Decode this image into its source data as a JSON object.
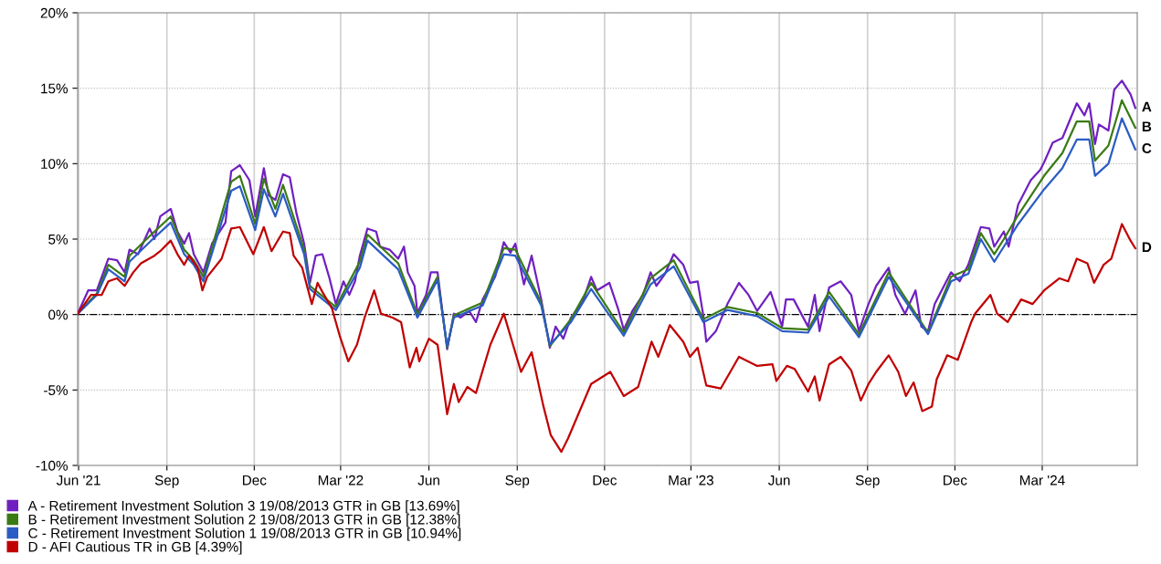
{
  "chart_data": {
    "type": "line",
    "xlim": [
      "2021-05-31",
      "2024-06-08"
    ],
    "xticks": [
      {
        "value": "2021-06-01",
        "label": "Jun '21"
      },
      {
        "value": "2021-09-01",
        "label": "Sep"
      },
      {
        "value": "2021-12-01",
        "label": "Dec"
      },
      {
        "value": "2022-03-01",
        "label": "Mar '22"
      },
      {
        "value": "2022-06-01",
        "label": "Jun"
      },
      {
        "value": "2022-09-01",
        "label": "Sep"
      },
      {
        "value": "2022-12-01",
        "label": "Dec"
      },
      {
        "value": "2023-03-01",
        "label": "Mar '23"
      },
      {
        "value": "2023-06-01",
        "label": "Jun"
      },
      {
        "value": "2023-09-01",
        "label": "Sep"
      },
      {
        "value": "2023-12-01",
        "label": "Dec"
      },
      {
        "value": "2024-03-01",
        "label": "Mar '24"
      }
    ],
    "ylim": [
      -10,
      20
    ],
    "yticks": [
      {
        "value": -10,
        "label": "-10%"
      },
      {
        "value": -5,
        "label": "-5%"
      },
      {
        "value": 0,
        "label": "0%"
      },
      {
        "value": 5,
        "label": "5%"
      },
      {
        "value": 10,
        "label": "10%"
      },
      {
        "value": 15,
        "label": "15%"
      },
      {
        "value": 20,
        "label": "20%"
      }
    ],
    "grid": true,
    "legend": "bottom left",
    "marker": "none",
    "line_style": "solid",
    "ref_lines": [
      {
        "axis": "y",
        "value": 0,
        "label": null,
        "color": "#000000",
        "line_style": "dashdot"
      }
    ],
    "annotations": [
      {
        "text": "A",
        "x": "2024-06-06",
        "y": 13.69
      },
      {
        "text": "B",
        "x": "2024-06-06",
        "y": 12.38
      },
      {
        "text": "C",
        "x": "2024-06-06",
        "y": 10.94
      },
      {
        "text": "D",
        "x": "2024-06-06",
        "y": 4.39
      }
    ],
    "series": [
      {
        "name": "A - Retirement Investment Solution 3 19/08/2013 GTR in GB [13.69%]",
        "color": "#7020c0",
        "x": [
          "2021-05-31",
          "2021-06-11",
          "2021-06-20",
          "2021-07-02",
          "2021-07-11",
          "2021-07-19",
          "2021-07-24",
          "2021-08-02",
          "2021-08-14",
          "2021-08-19",
          "2021-08-25",
          "2021-09-05",
          "2021-09-12",
          "2021-09-19",
          "2021-09-24",
          "2021-09-29",
          "2021-10-09",
          "2021-10-18",
          "2021-11-01",
          "2021-11-07",
          "2021-11-16",
          "2021-11-26",
          "2021-12-02",
          "2021-12-11",
          "2021-12-16",
          "2021-12-23",
          "2021-12-31",
          "2022-01-07",
          "2022-01-14",
          "2022-01-22",
          "2022-01-28",
          "2022-02-03",
          "2022-02-10",
          "2022-02-17",
          "2022-02-24",
          "2022-03-04",
          "2022-03-10",
          "2022-03-16",
          "2022-03-21",
          "2022-03-29",
          "2022-04-07",
          "2022-04-11",
          "2022-04-21",
          "2022-04-30",
          "2022-05-06",
          "2022-05-10",
          "2022-05-17",
          "2022-05-20",
          "2022-05-29",
          "2022-06-03",
          "2022-06-10",
          "2022-06-20",
          "2022-06-27",
          "2022-07-04",
          "2022-07-13",
          "2022-07-20",
          "2022-07-27",
          "2022-08-09",
          "2022-08-18",
          "2022-08-25",
          "2022-08-30",
          "2022-09-08",
          "2022-09-16",
          "2022-09-26",
          "2022-10-05",
          "2022-10-11",
          "2022-10-19",
          "2022-10-27",
          "2022-11-08",
          "2022-11-17",
          "2022-11-23",
          "2022-12-06",
          "2022-12-15",
          "2022-12-21",
          "2022-12-30",
          "2023-01-10",
          "2023-01-18",
          "2023-01-24",
          "2023-02-02",
          "2023-02-11",
          "2023-02-21",
          "2023-02-28",
          "2023-03-08",
          "2023-03-14",
          "2023-03-17",
          "2023-03-27",
          "2023-04-08",
          "2023-04-20",
          "2023-04-30",
          "2023-05-09",
          "2023-05-23",
          "2023-06-04",
          "2023-06-08",
          "2023-06-16",
          "2023-07-01",
          "2023-07-08",
          "2023-07-13",
          "2023-07-23",
          "2023-08-04",
          "2023-08-15",
          "2023-08-23",
          "2023-09-02",
          "2023-09-10",
          "2023-09-23",
          "2023-09-30",
          "2023-10-10",
          "2023-10-21",
          "2023-10-27",
          "2023-11-03",
          "2023-11-10",
          "2023-11-27",
          "2023-12-06",
          "2023-12-15",
          "2023-12-28",
          "2024-01-06",
          "2024-01-11",
          "2024-01-21",
          "2024-01-26",
          "2024-02-05",
          "2024-02-18",
          "2024-02-28",
          "2024-03-03",
          "2024-03-12",
          "2024-03-22",
          "2024-04-06",
          "2024-04-14",
          "2024-04-19",
          "2024-04-25",
          "2024-04-29",
          "2024-05-09",
          "2024-05-15",
          "2024-05-23",
          "2024-06-01",
          "2024-06-06"
        ],
        "values": [
          0.06,
          1.6,
          1.6,
          3.7,
          3.6,
          2.8,
          4.3,
          4.0,
          5.7,
          5.0,
          6.5,
          7.0,
          5.5,
          4.7,
          5.4,
          4.0,
          2.8,
          4.7,
          6.1,
          9.5,
          9.9,
          8.9,
          6.5,
          9.7,
          7.9,
          7.6,
          9.3,
          9.1,
          6.7,
          4.7,
          2.1,
          3.9,
          4.0,
          2.5,
          0.7,
          2.2,
          1.3,
          2.2,
          3.9,
          5.7,
          5.5,
          4.5,
          4.3,
          3.7,
          4.5,
          2.8,
          1.9,
          0.1,
          1.3,
          2.8,
          2.8,
          -2.3,
          0.06,
          -0.2,
          0.24,
          -0.5,
          1.0,
          2.5,
          4.8,
          4.1,
          4.7,
          2.0,
          3.9,
          1.0,
          -2.2,
          -0.8,
          -1.6,
          -0.2,
          0.8,
          2.5,
          1.6,
          2.1,
          0.4,
          -1.0,
          0.24,
          1.3,
          2.8,
          1.9,
          2.7,
          4.0,
          3.3,
          2.1,
          2.2,
          -0.1,
          -1.8,
          -1.1,
          0.7,
          2.1,
          1.3,
          0.24,
          1.5,
          -0.8,
          1.0,
          1.0,
          -0.8,
          1.3,
          -1.1,
          1.8,
          2.2,
          1.3,
          -1.1,
          0.7,
          1.9,
          3.1,
          1.3,
          0.06,
          1.6,
          -0.8,
          -1.1,
          0.7,
          2.8,
          2.2,
          3.3,
          5.8,
          5.7,
          4.5,
          5.5,
          4.5,
          7.3,
          8.9,
          9.6,
          10.1,
          11.4,
          11.7,
          14.0,
          13.2,
          14.0,
          11.3,
          12.6,
          12.2,
          14.9,
          15.5,
          14.6,
          13.69
        ]
      },
      {
        "name": "B - Retirement Investment Solution 2 19/08/2013 GTR in GB [12.38%]",
        "color": "#3a7a14",
        "x": [
          "2021-05-31",
          "2021-06-20",
          "2021-07-02",
          "2021-07-19",
          "2021-07-24",
          "2021-08-14",
          "2021-09-05",
          "2021-09-19",
          "2021-09-29",
          "2021-10-09",
          "2021-11-07",
          "2021-11-16",
          "2021-12-02",
          "2021-12-11",
          "2021-12-23",
          "2021-12-31",
          "2022-01-22",
          "2022-01-28",
          "2022-02-24",
          "2022-03-21",
          "2022-03-29",
          "2022-04-30",
          "2022-05-20",
          "2022-06-10",
          "2022-06-20",
          "2022-06-27",
          "2022-07-27",
          "2022-08-18",
          "2022-08-30",
          "2022-09-26",
          "2022-10-05",
          "2022-10-27",
          "2022-11-17",
          "2022-12-21",
          "2023-01-18",
          "2023-02-11",
          "2023-03-14",
          "2023-04-08",
          "2023-05-09",
          "2023-06-04",
          "2023-07-01",
          "2023-07-23",
          "2023-08-23",
          "2023-09-23",
          "2023-11-03",
          "2023-11-27",
          "2023-12-15",
          "2023-12-28",
          "2024-01-11",
          "2024-01-21",
          "2024-02-05",
          "2024-03-03",
          "2024-03-22",
          "2024-04-06",
          "2024-04-19",
          "2024-04-25",
          "2024-05-09",
          "2024-05-23",
          "2024-06-06"
        ],
        "values": [
          0.05,
          1.4,
          3.3,
          2.5,
          3.9,
          5.2,
          6.5,
          4.3,
          3.6,
          2.5,
          8.8,
          9.2,
          6.0,
          9.0,
          7.0,
          8.6,
          4.3,
          1.9,
          0.5,
          3.5,
          5.3,
          3.4,
          0.0,
          2.5,
          -2.2,
          -0.05,
          0.8,
          4.4,
          4.3,
          0.8,
          -2.1,
          -0.3,
          2.1,
          -1.2,
          2.4,
          3.6,
          -0.3,
          0.5,
          0.1,
          -0.9,
          -1.0,
          1.5,
          -1.3,
          2.8,
          -1.2,
          2.5,
          3.0,
          5.4,
          4.0,
          5.0,
          6.6,
          9.2,
          10.7,
          12.8,
          12.8,
          10.2,
          11.2,
          14.2,
          12.38
        ]
      },
      {
        "name": "C - Retirement Investment Solution 1 19/08/2013 GTR in GB [10.94%]",
        "color": "#2a5cc4",
        "x": [
          "2021-05-31",
          "2021-06-20",
          "2021-07-02",
          "2021-07-19",
          "2021-07-24",
          "2021-08-14",
          "2021-09-05",
          "2021-09-19",
          "2021-09-29",
          "2021-10-09",
          "2021-11-07",
          "2021-11-16",
          "2021-12-02",
          "2021-12-11",
          "2021-12-23",
          "2021-12-31",
          "2022-01-22",
          "2022-01-28",
          "2022-02-24",
          "2022-03-21",
          "2022-03-29",
          "2022-04-30",
          "2022-05-20",
          "2022-06-10",
          "2022-06-20",
          "2022-06-27",
          "2022-07-27",
          "2022-08-18",
          "2022-08-30",
          "2022-09-26",
          "2022-10-05",
          "2022-10-27",
          "2022-11-17",
          "2022-12-21",
          "2023-01-18",
          "2023-02-11",
          "2023-03-14",
          "2023-04-08",
          "2023-05-09",
          "2023-06-04",
          "2023-07-01",
          "2023-07-23",
          "2023-08-23",
          "2023-09-23",
          "2023-11-03",
          "2023-11-27",
          "2023-12-15",
          "2023-12-28",
          "2024-01-11",
          "2024-01-21",
          "2024-02-05",
          "2024-03-03",
          "2024-03-22",
          "2024-04-06",
          "2024-04-19",
          "2024-04-25",
          "2024-05-09",
          "2024-05-23",
          "2024-06-06"
        ],
        "values": [
          0.04,
          1.3,
          3.0,
          2.2,
          3.5,
          4.8,
          6.1,
          4.0,
          3.3,
          2.2,
          8.2,
          8.5,
          5.6,
          8.3,
          6.5,
          8.0,
          4.0,
          1.7,
          0.3,
          3.1,
          4.9,
          3.0,
          -0.2,
          2.3,
          -2.1,
          -0.2,
          0.6,
          4.0,
          3.9,
          0.6,
          -2.0,
          -0.5,
          1.7,
          -1.4,
          2.0,
          3.2,
          -0.5,
          0.3,
          -0.1,
          -1.1,
          -1.2,
          1.2,
          -1.5,
          2.5,
          -1.3,
          2.2,
          2.7,
          5.0,
          3.5,
          4.5,
          6.0,
          8.3,
          9.7,
          11.6,
          11.6,
          9.2,
          10.0,
          13.0,
          10.94
        ]
      },
      {
        "name": "D - AFI Cautious TR in GB [4.39%]",
        "color": "#c00000",
        "x": [
          "2021-05-31",
          "2021-06-14",
          "2021-06-25",
          "2021-07-02",
          "2021-07-11",
          "2021-07-19",
          "2021-07-28",
          "2021-08-05",
          "2021-08-19",
          "2021-08-25",
          "2021-09-05",
          "2021-09-12",
          "2021-09-19",
          "2021-09-24",
          "2021-10-03",
          "2021-10-08",
          "2021-10-13",
          "2021-10-28",
          "2021-11-07",
          "2021-11-16",
          "2021-11-30",
          "2021-12-11",
          "2021-12-19",
          "2021-12-31",
          "2022-01-07",
          "2022-01-11",
          "2022-01-20",
          "2022-01-30",
          "2022-02-05",
          "2022-02-10",
          "2022-02-20",
          "2022-02-28",
          "2022-03-09",
          "2022-03-18",
          "2022-03-26",
          "2022-04-05",
          "2022-04-12",
          "2022-04-24",
          "2022-05-03",
          "2022-05-12",
          "2022-05-19",
          "2022-05-22",
          "2022-06-01",
          "2022-06-10",
          "2022-06-20",
          "2022-06-27",
          "2022-07-02",
          "2022-07-11",
          "2022-07-20",
          "2022-08-04",
          "2022-08-18",
          "2022-09-05",
          "2022-09-16",
          "2022-09-28",
          "2022-10-06",
          "2022-10-17",
          "2022-10-24",
          "2022-11-05",
          "2022-11-17",
          "2022-12-07",
          "2022-12-21",
          "2023-01-05",
          "2023-01-19",
          "2023-01-26",
          "2023-02-07",
          "2023-02-21",
          "2023-02-28",
          "2023-03-08",
          "2023-03-17",
          "2023-04-01",
          "2023-04-20",
          "2023-05-09",
          "2023-05-25",
          "2023-05-29",
          "2023-06-09",
          "2023-06-17",
          "2023-07-01",
          "2023-07-08",
          "2023-07-13",
          "2023-07-23",
          "2023-08-04",
          "2023-08-15",
          "2023-08-25",
          "2023-09-02",
          "2023-09-10",
          "2023-09-23",
          "2023-10-03",
          "2023-10-11",
          "2023-10-19",
          "2023-10-28",
          "2023-11-07",
          "2023-11-12",
          "2023-11-23",
          "2023-12-04",
          "2023-12-18",
          "2023-12-22",
          "2024-01-07",
          "2024-01-14",
          "2024-01-25",
          "2024-02-08",
          "2024-02-20",
          "2024-03-03",
          "2024-03-19",
          "2024-03-28",
          "2024-04-06",
          "2024-04-17",
          "2024-04-24",
          "2024-05-04",
          "2024-05-12",
          "2024-05-23",
          "2024-06-01",
          "2024-06-06"
        ],
        "values": [
          0.06,
          1.3,
          1.3,
          2.2,
          2.4,
          1.9,
          2.8,
          3.4,
          3.9,
          4.2,
          4.9,
          4.0,
          3.3,
          3.9,
          3.1,
          1.6,
          2.5,
          3.7,
          5.7,
          5.8,
          4.0,
          5.8,
          4.2,
          5.5,
          5.4,
          3.9,
          3.1,
          0.7,
          2.1,
          1.5,
          0.4,
          -1.4,
          -3.1,
          -2.0,
          -0.2,
          1.6,
          0.06,
          -0.2,
          -0.5,
          -3.5,
          -2.2,
          -3.1,
          -1.6,
          -2.0,
          -6.6,
          -4.6,
          -5.8,
          -4.8,
          -5.2,
          -2.0,
          0.06,
          -3.8,
          -2.5,
          -6.0,
          -8.0,
          -9.1,
          -8.2,
          -6.4,
          -4.6,
          -3.8,
          -5.4,
          -4.8,
          -1.8,
          -2.8,
          -0.7,
          -1.8,
          -2.8,
          -2.2,
          -4.7,
          -4.9,
          -2.8,
          -3.4,
          -3.3,
          -4.4,
          -3.4,
          -3.6,
          -5.1,
          -4.1,
          -5.7,
          -3.3,
          -2.8,
          -3.7,
          -5.7,
          -4.6,
          -3.8,
          -2.7,
          -3.8,
          -5.4,
          -4.5,
          -6.4,
          -6.1,
          -4.3,
          -2.7,
          -3.0,
          -0.5,
          0.06,
          1.3,
          0.06,
          -0.5,
          1.0,
          0.7,
          1.6,
          2.4,
          2.2,
          3.7,
          3.4,
          2.1,
          3.3,
          3.7,
          6.0,
          4.9,
          4.39
        ]
      }
    ]
  }
}
